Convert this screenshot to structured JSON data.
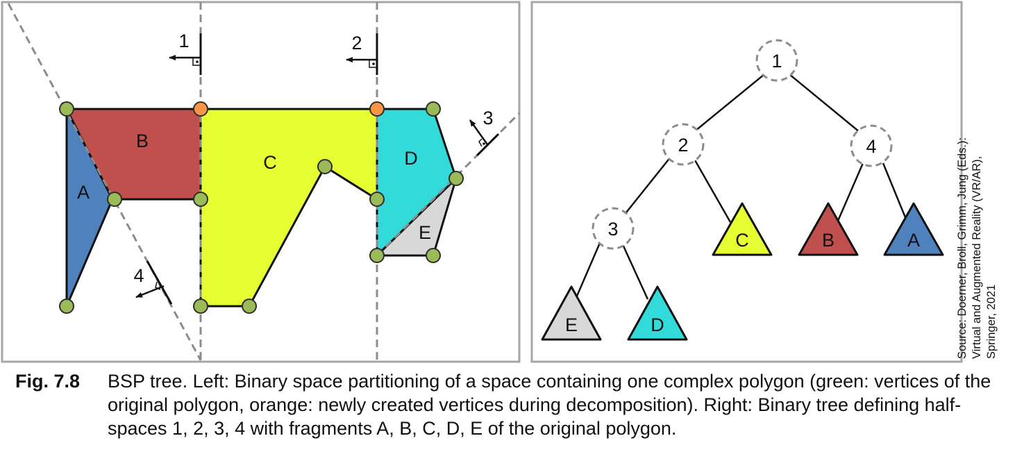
{
  "left_panel": {
    "region_labels": {
      "a": "A",
      "b": "B",
      "c": "C",
      "d": "D",
      "e": "E"
    },
    "split_labels": {
      "s1": "1",
      "s2": "2",
      "s3": "3",
      "s4": "4"
    },
    "colors": {
      "fragment_a": "#4f81bd",
      "fragment_b": "#c0504d",
      "fragment_c": "#e6ff33",
      "fragment_d": "#33dada",
      "fragment_e": "#d8d8d8",
      "original_vertex": "#9bbb59",
      "new_vertex": "#f79646"
    }
  },
  "right_panel": {
    "nodes": {
      "n1": "1",
      "n2": "2",
      "n3": "3",
      "n4": "4"
    },
    "leaves": {
      "c": "C",
      "b": "B",
      "a": "A",
      "e": "E",
      "d": "D"
    }
  },
  "source": {
    "line1": "Source: Doerner, Broll, Grimm, Jung (Eds.):",
    "line2": "Virtual and Augmented Reality (VR/AR),",
    "line3": "Springer, 2021"
  },
  "caption": {
    "number": "Fig. 7.8",
    "text": "BSP tree. Left: Binary space partitioning of a space containing one complex polygon (green: vertices of the original polygon, orange: newly created vertices during decomposition). Right: Binary tree defining half-spaces 1, 2, 3, 4 with fragments A, B, C, D, E of the original polygon."
  }
}
